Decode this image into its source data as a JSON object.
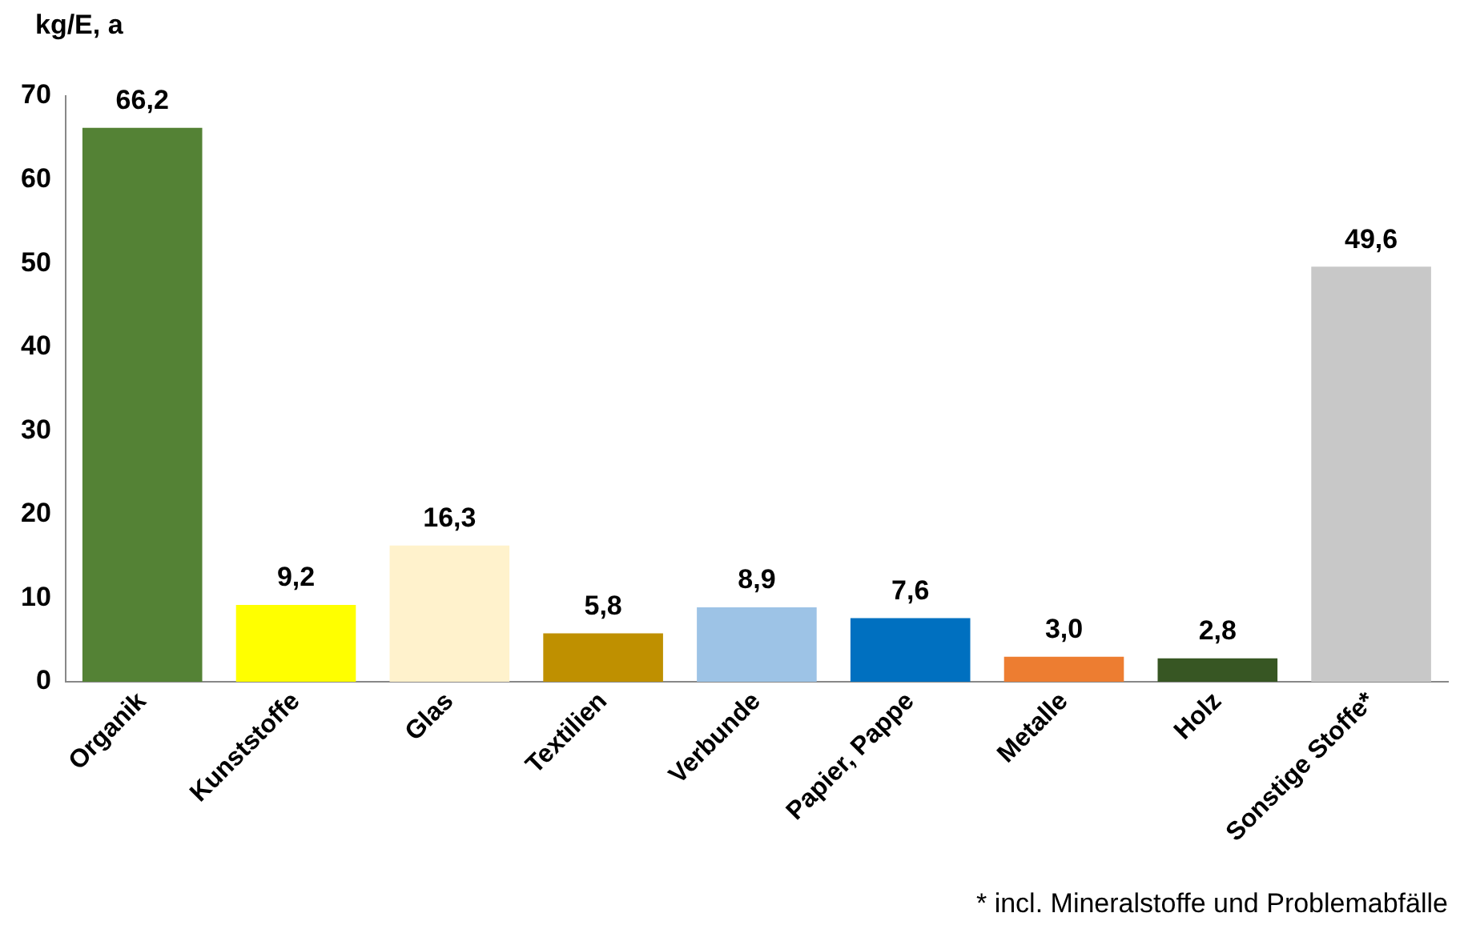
{
  "chart_data": {
    "type": "bar",
    "ylabel": "kg/E, a",
    "categories": [
      "Organik",
      "Kunststoffe",
      "Glas",
      "Textilien",
      "Verbunde",
      "Papier, Pappe",
      "Metalle",
      "Holz",
      "Sonstige Stoffe*"
    ],
    "values": [
      66.2,
      9.2,
      16.3,
      5.8,
      8.9,
      7.6,
      3.0,
      2.8,
      49.6
    ],
    "colors": [
      "#548235",
      "#ffff00",
      "#fff2cc",
      "#bf9000",
      "#9dc3e6",
      "#0070c0",
      "#ed7d31",
      "#375623",
      "#c8c8c8"
    ],
    "value_labels": [
      "66,2",
      "9,2",
      "16,3",
      "5,8",
      "8,9",
      "7,6",
      "3,0",
      "2,8",
      "49,6"
    ],
    "ylim": [
      0,
      70
    ],
    "yticks": [
      0,
      10,
      20,
      30,
      40,
      50,
      60,
      70
    ],
    "grid": false,
    "legend": false,
    "annotations": [
      "* incl. Mineralstoffe und Problemabfälle"
    ]
  }
}
